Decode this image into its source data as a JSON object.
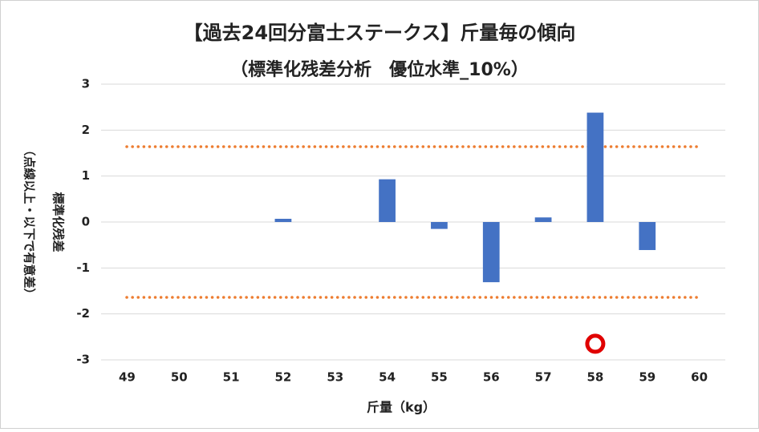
{
  "chart_data": {
    "type": "bar",
    "title": "【過去24回分富士ステークス】斤量毎の傾向",
    "subtitle": "（標準化残差分析　優位水準_10%）",
    "x_label": "斤量（kg）",
    "y_label": [
      "標準化残差",
      "（点線以上・以下で有意差）"
    ],
    "categories": [
      "49",
      "50",
      "51",
      "52",
      "53",
      "54",
      "55",
      "56",
      "57",
      "58",
      "59",
      "60"
    ],
    "values": [
      null,
      null,
      null,
      0.07,
      null,
      0.93,
      -0.15,
      -1.31,
      0.1,
      2.38,
      -0.61,
      null
    ],
    "color": "#4472c4",
    "ylim": [
      -3,
      3
    ],
    "yticks": [
      -3,
      -2,
      -1,
      0,
      1,
      2,
      3
    ],
    "grid": true,
    "reference_lines": {
      "values": [
        1.64,
        -1.64
      ],
      "color": "#ed7d31"
    },
    "marker": {
      "category_index": 9,
      "value": -2.65,
      "color": "#e00000"
    }
  }
}
